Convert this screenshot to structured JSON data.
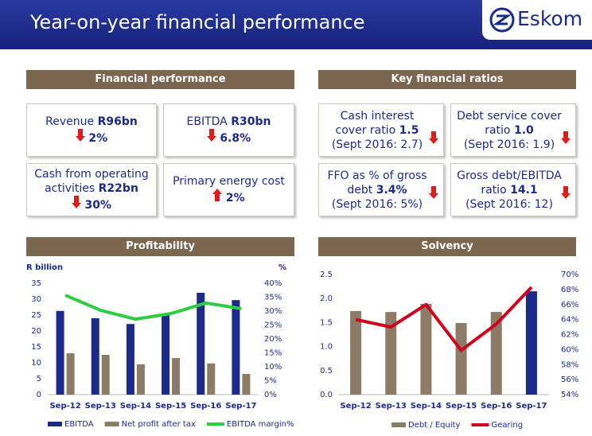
{
  "header": {
    "title": "Year-on-year financial performance",
    "logo": "Eskom"
  },
  "financial_performance": {
    "title": "Financial performance",
    "items": [
      {
        "label": "Revenue",
        "value": "R96bn",
        "change": "2%"
      },
      {
        "label": "EBITDA",
        "value": "R30bn",
        "change": "6.8%"
      },
      {
        "label": "Cash from operating activities",
        "value": "R22bn",
        "change": "30%"
      },
      {
        "label": "Primary energy cost",
        "change": "2%"
      }
    ]
  },
  "key_financial_ratios": {
    "title": "Key financial ratios",
    "items": [
      {
        "label": "Cash interest cover ratio",
        "value": "1.5",
        "comparison": "(Sept 2016: 2.7)"
      },
      {
        "label": "Debt service cover ratio",
        "value": "1.0",
        "comparison": "(Sept 2016: 1.9)"
      },
      {
        "label": "FFO as % of gross debt",
        "value": "3.4%",
        "comparison": "(Sept 2016: 5%)"
      },
      {
        "label": "Gross debt/EBITDA ratio",
        "value": "14.1",
        "comparison": "(Sept 2016: 12)"
      }
    ]
  },
  "chart_data": [
    {
      "type": "combo",
      "title": "Profitability",
      "ylabel": "R billion",
      "y2label": "%",
      "categories": [
        "Sep-12",
        "Sep-13",
        "Sep-14",
        "Sep-15",
        "Sep-16",
        "Sep-17"
      ],
      "series": [
        {
          "name": "EBITDA",
          "color": "#1c2a8c",
          "values": [
            26.3,
            24,
            22.2,
            25.5,
            32,
            29.7
          ]
        },
        {
          "name": "Net profit after tax",
          "color": "#8c7b66",
          "values": [
            13,
            12.5,
            9.5,
            11.5,
            9.8,
            6.5
          ]
        },
        {
          "name": "EBITDA margin%",
          "color": "#2ecc40",
          "axis": "y2",
          "values": [
            35.7,
            30.3,
            27.1,
            29.1,
            32.9,
            30.9
          ]
        }
      ],
      "ylim": [
        0,
        35
      ],
      "yticks": [
        0,
        5,
        10,
        15,
        20,
        25,
        30,
        35
      ],
      "y2lim": [
        0,
        40
      ],
      "y2ticks": [
        {
          "value": 0,
          "label": "0%"
        },
        {
          "value": 5,
          "label": "5%"
        },
        {
          "value": 10,
          "label": "10%"
        },
        {
          "value": 15,
          "label": "15%"
        },
        {
          "value": 20,
          "label": "20%"
        },
        {
          "value": 25,
          "label": "25%"
        },
        {
          "value": 30,
          "label": "30%"
        },
        {
          "value": 35,
          "label": "35%"
        },
        {
          "value": 40,
          "label": "40%"
        }
      ]
    },
    {
      "type": "combo",
      "title": "Solvency",
      "categories": [
        "Sep-12",
        "Sep-13",
        "Sep-14",
        "Sep-15",
        "Sep-16",
        "Sep-17"
      ],
      "series": [
        {
          "name": "Debt / Equity",
          "color": "#8c7b66",
          "colors": [
            "#8c7b66",
            "#8c7b66",
            "#8c7b66",
            "#8c7b66",
            "#8c7b66",
            "#1c2a8c"
          ],
          "values": [
            1.74,
            1.72,
            1.89,
            1.49,
            1.72,
            2.15
          ]
        },
        {
          "name": "Gearing",
          "color": "#d0021b",
          "axis": "y2",
          "values": [
            64.0,
            63.0,
            66.0,
            59.9,
            63.4,
            68.3
          ]
        }
      ],
      "ylim": [
        0,
        2.5
      ],
      "yticks": [
        {
          "value": 0,
          "label": "0.0"
        },
        0.5,
        {
          "value": 1,
          "label": "1.0"
        },
        1.5,
        {
          "value": 2,
          "label": "2.0"
        },
        2.5
      ],
      "y2lim": [
        54,
        70
      ],
      "y2ticks": [
        {
          "value": 54,
          "label": "54%"
        },
        {
          "value": 56,
          "label": "56%"
        },
        {
          "value": 58,
          "label": "58%"
        },
        {
          "value": 60,
          "label": "60%"
        },
        {
          "value": 62,
          "label": "62%"
        },
        {
          "value": 64,
          "label": "64%"
        },
        {
          "value": 66,
          "label": "66%"
        },
        {
          "value": 68,
          "label": "68%"
        },
        {
          "value": 70,
          "label": "70%"
        }
      ]
    }
  ]
}
